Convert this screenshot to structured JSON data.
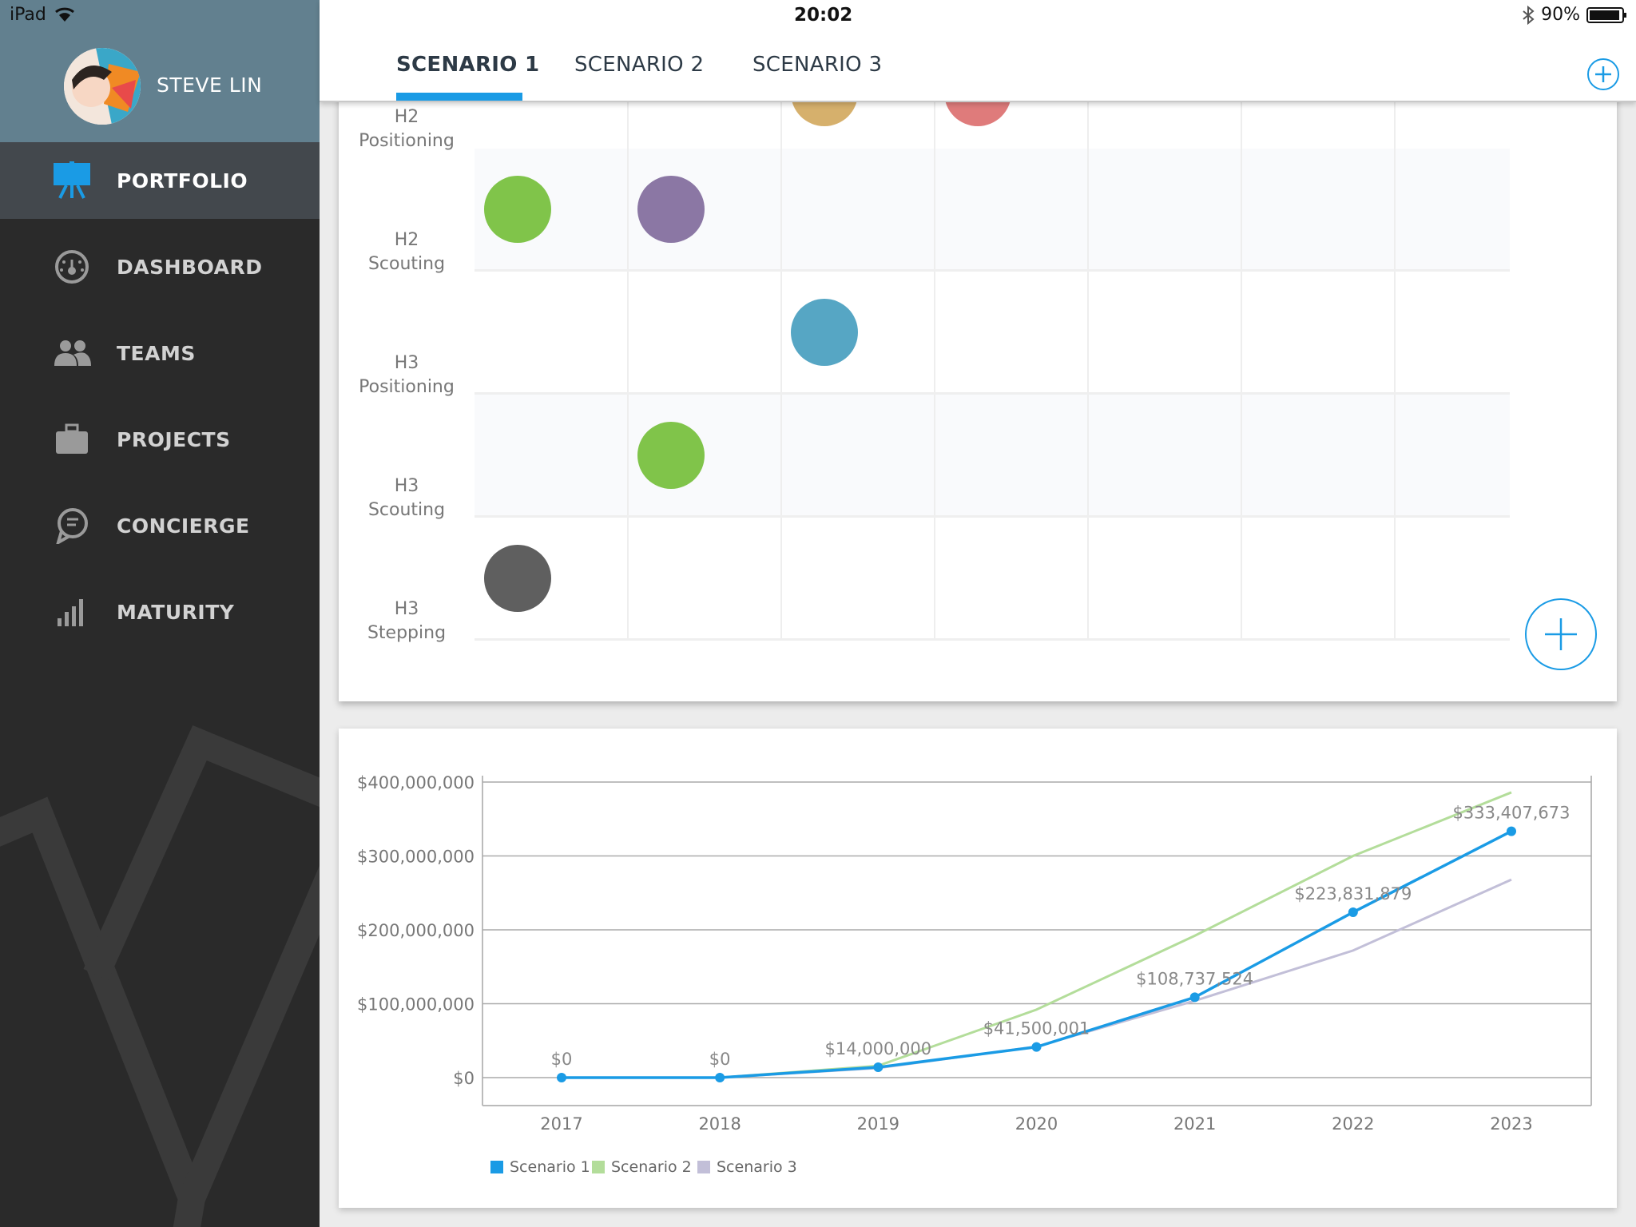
{
  "status_bar": {
    "device": "iPad",
    "time": "20:02",
    "battery": "90%"
  },
  "profile": {
    "name": "STEVE LIN"
  },
  "nav": [
    {
      "label": "PORTFOLIO",
      "icon": "easel-icon",
      "active": true
    },
    {
      "label": "DASHBOARD",
      "icon": "gauge-icon",
      "active": false
    },
    {
      "label": "TEAMS",
      "icon": "people-icon",
      "active": false
    },
    {
      "label": "PROJECTS",
      "icon": "briefcase-icon",
      "active": false
    },
    {
      "label": "CONCIERGE",
      "icon": "chat-bubble-icon",
      "active": false
    },
    {
      "label": "MATURITY",
      "icon": "signal-bars-icon",
      "active": false
    }
  ],
  "tabs": [
    {
      "label": "SCENARIO 1",
      "active": true
    },
    {
      "label": "SCENARIO 2",
      "active": false
    },
    {
      "label": "SCENARIO 3",
      "active": false
    }
  ],
  "matrix": {
    "rows": [
      {
        "line1": "H2",
        "line2": "Positioning"
      },
      {
        "line1": "H2",
        "line2": "Scouting"
      },
      {
        "line1": "H3",
        "line2": "Positioning"
      },
      {
        "line1": "H3",
        "line2": "Scouting"
      },
      {
        "line1": "H3",
        "line2": "Stepping"
      }
    ],
    "bubbles": [
      {
        "row": 0,
        "col": 2,
        "color": "#d6b06c"
      },
      {
        "row": 0,
        "col": 3,
        "color": "#df7b7b"
      },
      {
        "row": 1,
        "col": 0,
        "color": "#80c44a"
      },
      {
        "row": 1,
        "col": 1,
        "color": "#8b77a4"
      },
      {
        "row": 2,
        "col": 2,
        "color": "#56a6c4"
      },
      {
        "row": 3,
        "col": 1,
        "color": "#80c44a"
      },
      {
        "row": 4,
        "col": 0,
        "color": "#5f5f5f"
      }
    ]
  },
  "chart_data": {
    "type": "line",
    "categories": [
      "2017",
      "2018",
      "2019",
      "2020",
      "2021",
      "2022",
      "2023"
    ],
    "ylim": [
      0,
      400000000
    ],
    "yticks": [
      0,
      100000000,
      200000000,
      300000000,
      400000000
    ],
    "ytick_labels": [
      "$0",
      "$100,000,000",
      "$200,000,000",
      "$300,000,000",
      "$400,000,000"
    ],
    "series": [
      {
        "name": "Scenario 1",
        "color": "#1a9be5",
        "values": [
          0,
          0,
          14000000,
          41500001,
          108737524,
          223831879,
          333407673
        ]
      },
      {
        "name": "Scenario 2",
        "color": "#b3dd9a",
        "values": [
          0,
          0,
          16000000,
          92000000,
          192000000,
          300000000,
          386000000
        ]
      },
      {
        "name": "Scenario 3",
        "color": "#c2bfd8",
        "values": [
          0,
          0,
          13000000,
          42000000,
          104000000,
          172000000,
          268000000
        ]
      }
    ],
    "data_labels": [
      "$0",
      "$0",
      "$14,000,000",
      "$41,500,001",
      "$108,737,524",
      "$223,831,879",
      "$333,407,673"
    ]
  },
  "colors": {
    "accent": "#1a9be5",
    "sidebar": "#2a2a2a",
    "profile_bg": "#62808f"
  }
}
